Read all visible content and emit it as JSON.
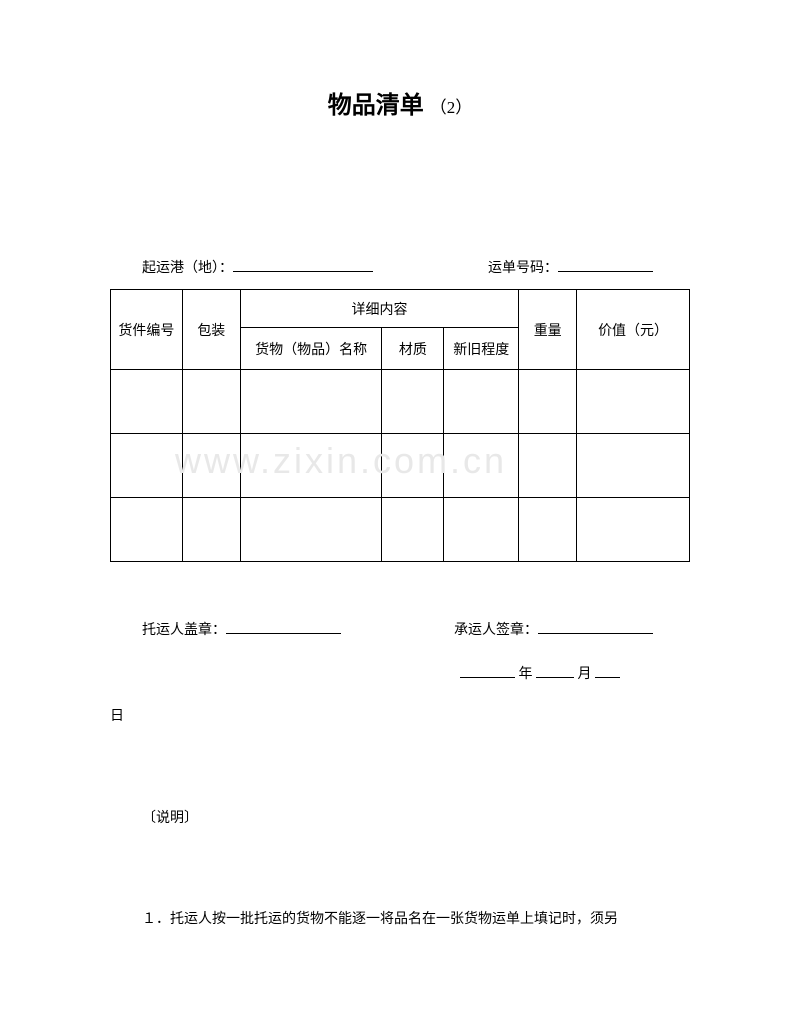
{
  "title": {
    "main": "物品清单",
    "suffix": "（2）"
  },
  "info": {
    "port_label": "起运港（地）：",
    "waybill_label": "运单号码："
  },
  "table": {
    "headers": {
      "cargo_id": "货件编号",
      "packaging": "包装",
      "details": "详细内容",
      "item_name": "货物（物品）名称",
      "material": "材质",
      "condition": "新旧程度",
      "weight": "重量",
      "value": "价值（元）"
    },
    "columns": {
      "id_width": 72,
      "pack_width": 58,
      "name_width": 142,
      "material_width": 62,
      "condition_width": 75,
      "weight_width": 58,
      "value_width": 113
    },
    "border_color": "#000000",
    "border_width": 1.5,
    "data_rows": 3
  },
  "signatures": {
    "shipper_label": "托运人盖章：",
    "carrier_label": "承运人签章："
  },
  "date": {
    "year_label": "年",
    "month_label": "月",
    "day_label": "日"
  },
  "notes": {
    "label": "〔说明〕",
    "item1": "１．托运人按一批托运的货物不能逐一将品名在一张货物运单上填记时，须另"
  },
  "watermark": {
    "text": "www.zixin.com.cn",
    "color": "#e8e8e8",
    "fontsize": 36
  },
  "styling": {
    "background_color": "#ffffff",
    "text_color": "#000000",
    "body_fontsize": 14,
    "title_fontsize": 24,
    "font_family": "SimSun"
  }
}
